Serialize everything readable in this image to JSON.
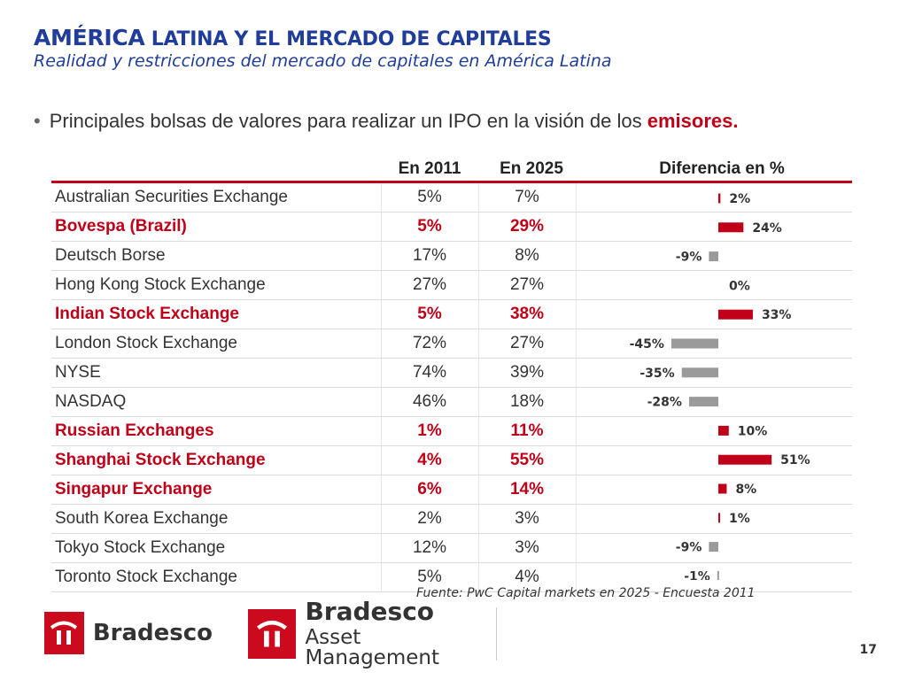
{
  "header": {
    "title_lead": "AMÉRICA",
    "title_rest": " LATINA Y EL MERCADO DE CAPITALES",
    "subtitle": "Realidad y restricciones del mercado de capitales en América Latina"
  },
  "bullet": {
    "dot": "•",
    "text": "Principales bolsas de valores para realizar un IPO en la visión de los ",
    "highlight": "emisores."
  },
  "chart_data": {
    "type": "table",
    "columns": [
      "",
      "En 2011",
      "En 2025",
      "Diferencia en %"
    ],
    "colors": {
      "highlight": "#c00018",
      "bar_positive": "#c00018",
      "bar_negative": "#9a9a9a"
    },
    "rows": [
      {
        "name": "Australian Securities Exchange",
        "y2011": "5%",
        "y2025": "7%",
        "diff": 2,
        "diff_label": "2%",
        "highlight": false
      },
      {
        "name": "Bovespa (Brazil)",
        "y2011": "5%",
        "y2025": "29%",
        "diff": 24,
        "diff_label": "24%",
        "highlight": true
      },
      {
        "name": "Deutsch Borse",
        "y2011": "17%",
        "y2025": "8%",
        "diff": -9,
        "diff_label": "-9%",
        "highlight": false
      },
      {
        "name": "Hong Kong Stock Exchange",
        "y2011": "27%",
        "y2025": "27%",
        "diff": 0,
        "diff_label": "0%",
        "highlight": false
      },
      {
        "name": "Indian Stock Exchange",
        "y2011": "5%",
        "y2025": "38%",
        "diff": 33,
        "diff_label": "33%",
        "highlight": true
      },
      {
        "name": "London Stock Exchange",
        "y2011": "72%",
        "y2025": "27%",
        "diff": -45,
        "diff_label": "-45%",
        "highlight": false
      },
      {
        "name": "NYSE",
        "y2011": "74%",
        "y2025": "39%",
        "diff": -35,
        "diff_label": "-35%",
        "highlight": false
      },
      {
        "name": "NASDAQ",
        "y2011": "46%",
        "y2025": "18%",
        "diff": -28,
        "diff_label": "-28%",
        "highlight": false
      },
      {
        "name": "Russian Exchanges",
        "y2011": "1%",
        "y2025": "11%",
        "diff": 10,
        "diff_label": "10%",
        "highlight": true
      },
      {
        "name": "Shanghai Stock Exchange",
        "y2011": "4%",
        "y2025": "55%",
        "diff": 51,
        "diff_label": "51%",
        "highlight": true
      },
      {
        "name": "Singapur Exchange",
        "y2011": "6%",
        "y2025": "14%",
        "diff": 8,
        "diff_label": "8%",
        "highlight": true
      },
      {
        "name": "South Korea Exchange",
        "y2011": "2%",
        "y2025": "3%",
        "diff": 1,
        "diff_label": "1%",
        "highlight": false
      },
      {
        "name": "Tokyo Stock Exchange",
        "y2011": "12%",
        "y2025": "3%",
        "diff": -9,
        "diff_label": "-9%",
        "highlight": false
      },
      {
        "name": "Toronto Stock Exchange",
        "y2011": "5%",
        "y2025": "4%",
        "diff": -1,
        "diff_label": "-1%",
        "highlight": false
      }
    ]
  },
  "source": "Fuente: PwC Capital markets en 2025 - Encuesta 2011",
  "logos": {
    "bradesco": "Bradesco",
    "asset_brand": "Bradesco",
    "asset_sub": "Asset Management"
  },
  "page_number": "17"
}
